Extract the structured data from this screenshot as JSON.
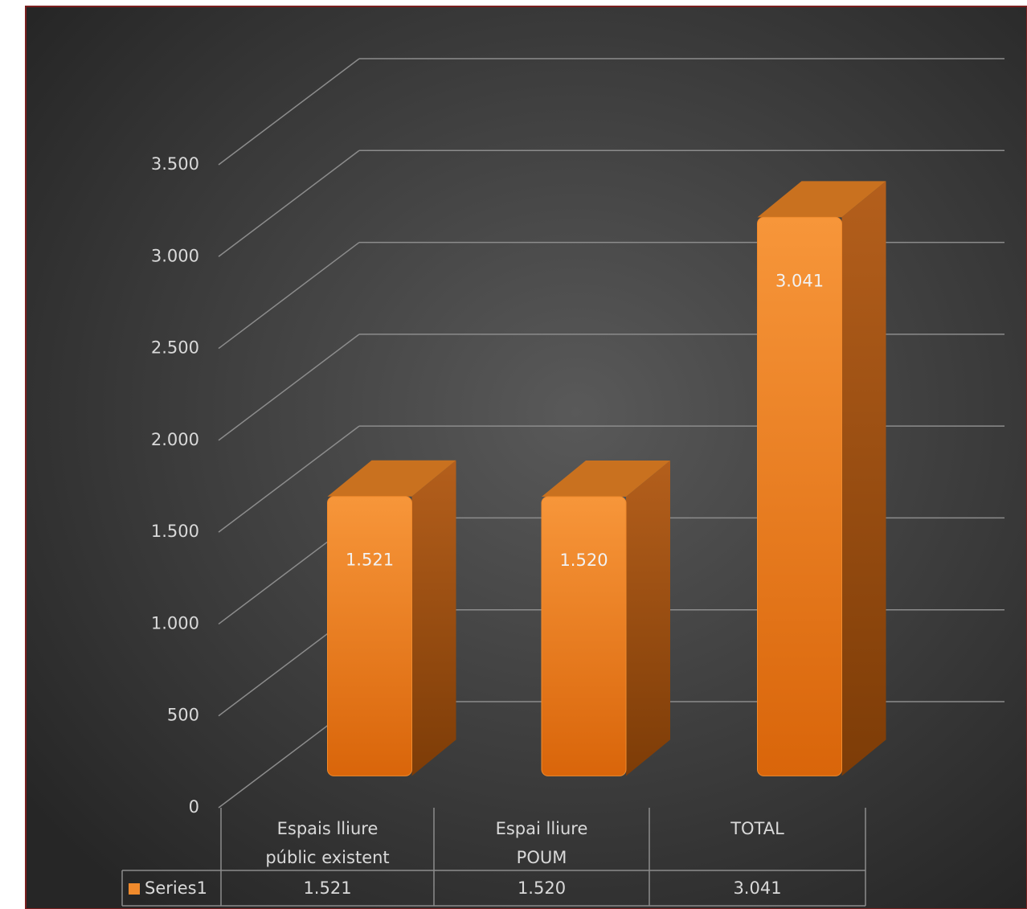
{
  "chart_data": {
    "type": "bar3d",
    "categories": [
      "Espais lliure públic existent",
      "Espai lliure POUM",
      "TOTAL"
    ],
    "series": [
      {
        "name": "Series1",
        "color": "#f08a2c",
        "values": [
          1521,
          1520,
          3041
        ],
        "value_labels": [
          "1.521",
          "1.520",
          "3.041"
        ]
      }
    ],
    "ylim": [
      0,
      3500
    ],
    "yticks": [
      0,
      500,
      {
        "value": 1000,
        "label": "1.000"
      },
      {
        "value": 1500,
        "label": "1.500"
      },
      {
        "value": 2000,
        "label": "2.000"
      },
      {
        "value": 2500,
        "label": "2.500"
      },
      {
        "value": 3000,
        "label": "3.000"
      },
      {
        "value": 3500,
        "label": "3.500"
      }
    ],
    "grid": true,
    "data_table": true
  }
}
